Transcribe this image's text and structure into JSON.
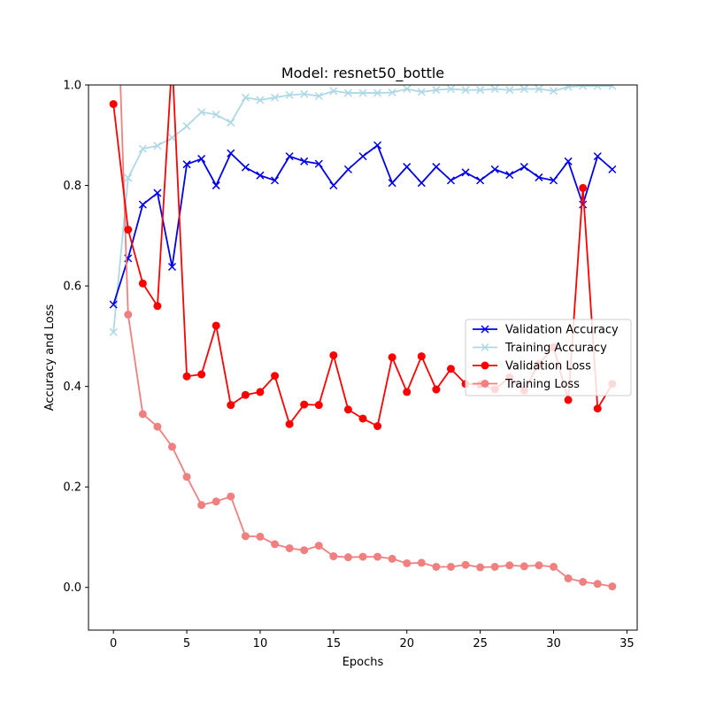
{
  "chart_data": {
    "type": "line",
    "title": "Model: resnet50_bottle",
    "xlabel": "Epochs",
    "ylabel": "Accuracy and Loss",
    "xlim": [
      -1.7,
      35.7
    ],
    "ylim": [
      -0.085,
      1.0
    ],
    "xticks": [
      0,
      5,
      10,
      15,
      20,
      25,
      30,
      35
    ],
    "yticks": [
      0.0,
      0.2,
      0.4,
      0.6,
      0.8,
      1.0
    ],
    "xtick_labels": [
      "0",
      "5",
      "10",
      "15",
      "20",
      "25",
      "30",
      "35"
    ],
    "ytick_labels": [
      "0.0",
      "0.2",
      "0.4",
      "0.6",
      "0.8",
      "1.0"
    ],
    "grid": false,
    "legend_position": "center-right",
    "x": [
      0,
      1,
      2,
      3,
      4,
      5,
      6,
      7,
      8,
      9,
      10,
      11,
      12,
      13,
      14,
      15,
      16,
      17,
      18,
      19,
      20,
      21,
      22,
      23,
      24,
      25,
      26,
      27,
      28,
      29,
      30,
      31,
      32,
      33,
      34
    ],
    "series": [
      {
        "name": "Validation Accuracy",
        "color": "#0000ee",
        "marker": "x",
        "values": [
          0.563,
          0.655,
          0.762,
          0.785,
          0.638,
          0.842,
          0.853,
          0.8,
          0.864,
          0.836,
          0.82,
          0.81,
          0.858,
          0.848,
          0.843,
          0.8,
          0.832,
          0.858,
          0.88,
          0.805,
          0.837,
          0.805,
          0.837,
          0.81,
          0.826,
          0.81,
          0.832,
          0.821,
          0.837,
          0.816,
          0.81,
          0.848,
          0.762,
          0.858,
          0.832
        ]
      },
      {
        "name": "Training Accuracy",
        "color": "#add8e6",
        "marker": "x",
        "values": [
          0.508,
          0.815,
          0.873,
          0.879,
          0.895,
          0.918,
          0.946,
          0.941,
          0.925,
          0.975,
          0.97,
          0.975,
          0.98,
          0.982,
          0.978,
          0.988,
          0.984,
          0.984,
          0.984,
          0.985,
          0.992,
          0.986,
          0.99,
          0.992,
          0.99,
          0.99,
          0.992,
          0.99,
          0.992,
          0.992,
          0.988,
          0.996,
          0.998,
          0.998,
          0.998
        ]
      },
      {
        "name": "Validation Loss",
        "color": "#ff0000",
        "marker": "o",
        "values": [
          0.962,
          0.712,
          0.605,
          0.56,
          1.05,
          0.42,
          0.424,
          0.521,
          0.363,
          0.383,
          0.389,
          0.421,
          0.325,
          0.364,
          0.363,
          0.462,
          0.354,
          0.336,
          0.321,
          0.458,
          0.389,
          0.46,
          0.394,
          0.435,
          0.405,
          0.404,
          0.394,
          0.418,
          0.392,
          0.445,
          0.478,
          0.373,
          0.795,
          0.356,
          0.405
        ]
      },
      {
        "name": "Training Loss",
        "color": "#f08080",
        "marker": "o",
        "values": [
          1.42,
          0.543,
          0.345,
          0.32,
          0.28,
          0.22,
          0.164,
          0.171,
          0.181,
          0.102,
          0.101,
          0.086,
          0.078,
          0.074,
          0.083,
          0.062,
          0.06,
          0.061,
          0.061,
          0.057,
          0.048,
          0.049,
          0.041,
          0.041,
          0.045,
          0.04,
          0.041,
          0.044,
          0.042,
          0.044,
          0.041,
          0.018,
          0.011,
          0.007,
          0.002
        ]
      }
    ]
  }
}
